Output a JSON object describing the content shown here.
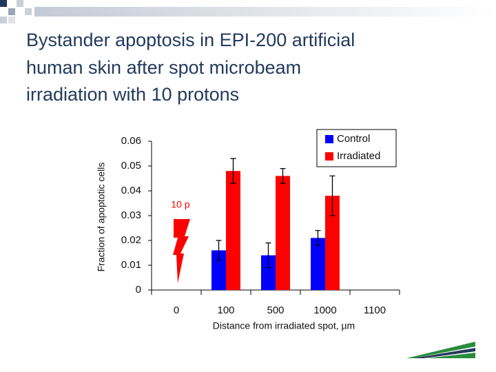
{
  "chart_data": {
    "type": "bar",
    "title_lines": [
      "Bystander apoptosis in EPI-200 artificial",
      "human skin after spot microbeam",
      "irradiation with 10 protons"
    ],
    "xlabel": "Distance from irradiated spot, µm",
    "ylabel": "Fraction of apoptotic cells",
    "annotation": "10 p",
    "categories": [
      "0",
      "100",
      "500",
      "1000",
      "1100"
    ],
    "series": [
      {
        "name": "Control",
        "color": "#0000ff",
        "values": [
          null,
          0.016,
          0.014,
          0.021,
          null
        ],
        "errors": [
          null,
          0.004,
          0.005,
          0.003,
          null
        ]
      },
      {
        "name": "Irradiated",
        "color": "#ff0000",
        "values": [
          null,
          0.048,
          0.046,
          0.038,
          null
        ],
        "errors": [
          null,
          0.005,
          0.003,
          0.008,
          null
        ]
      }
    ],
    "ylim": [
      0,
      0.06
    ],
    "yticks": [
      0,
      0.01,
      0.02,
      0.03,
      0.04,
      0.05,
      0.06
    ],
    "legend": "upper right"
  }
}
